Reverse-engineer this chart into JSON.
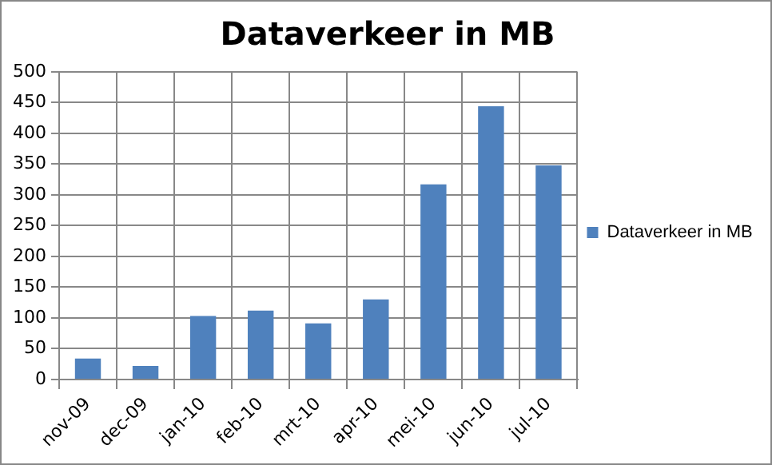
{
  "chart_data": {
    "type": "bar",
    "title": "Dataverkeer in MB",
    "categories": [
      "nov-09",
      "dec-09",
      "jan-10",
      "feb-10",
      "mrt-10",
      "apr-10",
      "mei-10",
      "jun-10",
      "jul-10"
    ],
    "series": [
      {
        "name": "Dataverkeer in MB",
        "color": "#4f81bd",
        "values": [
          34,
          22,
          103,
          112,
          91,
          130,
          317,
          444,
          348
        ]
      }
    ],
    "ylim": [
      0,
      500
    ],
    "yticks": [
      0,
      50,
      100,
      150,
      200,
      250,
      300,
      350,
      400,
      450,
      500
    ],
    "grid": true,
    "legend": "right"
  }
}
